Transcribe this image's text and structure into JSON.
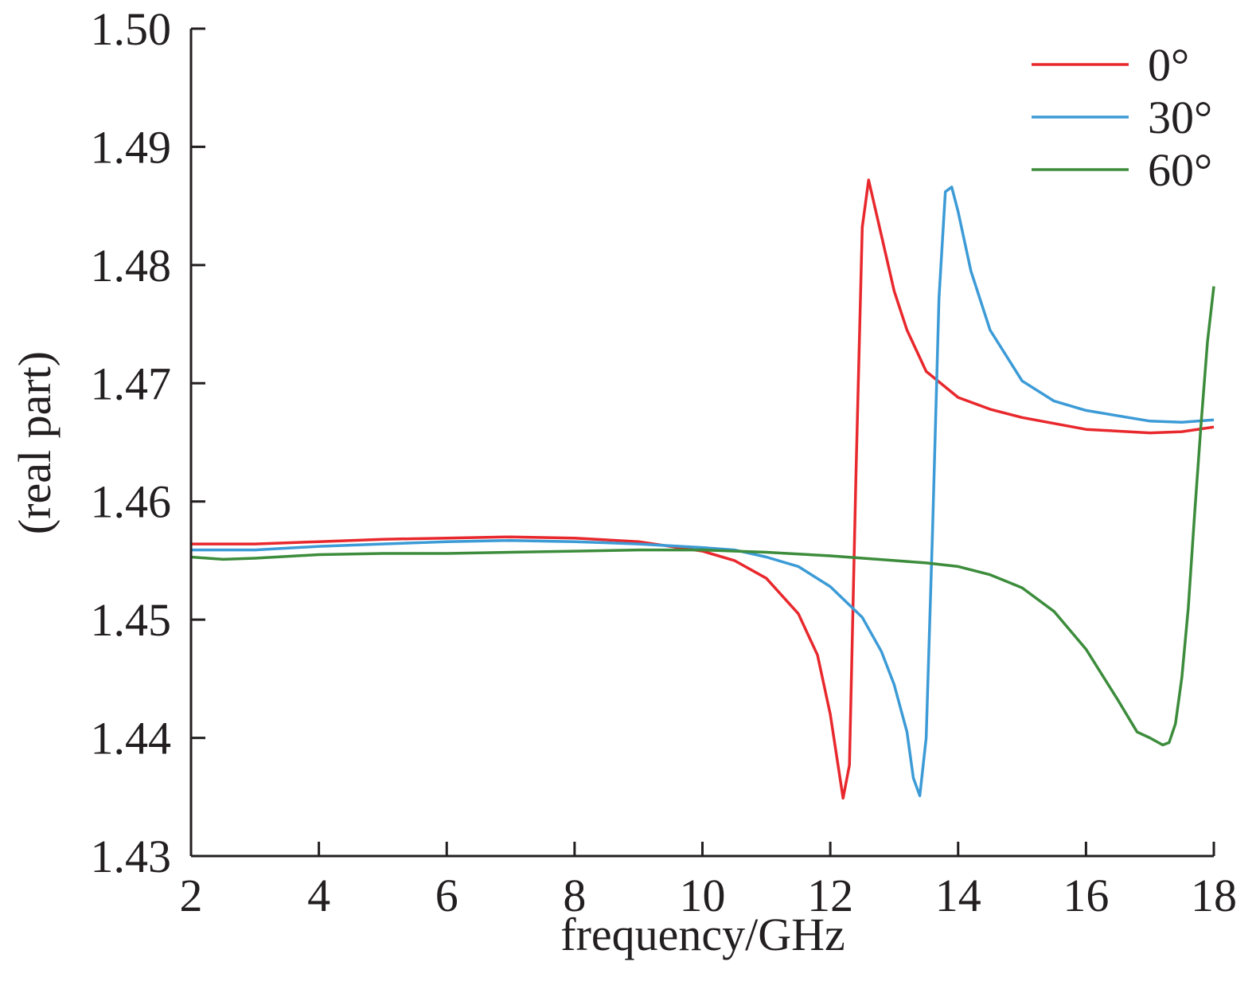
{
  "chart_data": {
    "type": "line",
    "xlabel": "frequency/GHz",
    "ylabel": "(real part)",
    "xlim": [
      2,
      18
    ],
    "ylim": [
      1.43,
      1.5
    ],
    "x_ticks": [
      2,
      4,
      6,
      8,
      10,
      12,
      14,
      16,
      18
    ],
    "x_tick_labels": [
      "2",
      "4",
      "6",
      "8",
      "10",
      "12",
      "14",
      "16",
      "18"
    ],
    "y_ticks": [
      1.43,
      1.44,
      1.45,
      1.46,
      1.47,
      1.48,
      1.49,
      1.5
    ],
    "y_tick_labels": [
      "1.43",
      "1.44",
      "1.45",
      "1.46",
      "1.47",
      "1.48",
      "1.49",
      "1.50"
    ],
    "grid": false,
    "legend_position": "top-right",
    "series": [
      {
        "name": "0°",
        "color": "#e8282d",
        "points": [
          [
            2,
            1.4564
          ],
          [
            3,
            1.4564
          ],
          [
            4,
            1.4566
          ],
          [
            5,
            1.4568
          ],
          [
            6,
            1.4569
          ],
          [
            7,
            1.457
          ],
          [
            8,
            1.4569
          ],
          [
            9,
            1.4566
          ],
          [
            10,
            1.4558
          ],
          [
            10.5,
            1.455
          ],
          [
            11,
            1.4535
          ],
          [
            11.5,
            1.4505
          ],
          [
            11.8,
            1.447
          ],
          [
            12,
            1.442
          ],
          [
            12.2,
            1.4349
          ],
          [
            12.3,
            1.4377
          ],
          [
            12.4,
            1.462
          ],
          [
            12.5,
            1.4832
          ],
          [
            12.6,
            1.4872
          ],
          [
            12.8,
            1.4825
          ],
          [
            13,
            1.4778
          ],
          [
            13.2,
            1.4745
          ],
          [
            13.5,
            1.471
          ],
          [
            14,
            1.4688
          ],
          [
            14.5,
            1.4678
          ],
          [
            15,
            1.4671
          ],
          [
            16,
            1.4661
          ],
          [
            17,
            1.4658
          ],
          [
            17.5,
            1.4659
          ],
          [
            18,
            1.4663
          ]
        ]
      },
      {
        "name": "30°",
        "color": "#3c9bd6",
        "points": [
          [
            2,
            1.4559
          ],
          [
            3,
            1.4559
          ],
          [
            4,
            1.4562
          ],
          [
            5,
            1.4564
          ],
          [
            6,
            1.4566
          ],
          [
            7,
            1.4567
          ],
          [
            8,
            1.4566
          ],
          [
            9,
            1.4564
          ],
          [
            10,
            1.4561
          ],
          [
            10.5,
            1.4559
          ],
          [
            11,
            1.4553
          ],
          [
            11.5,
            1.4545
          ],
          [
            12,
            1.4528
          ],
          [
            12.5,
            1.4502
          ],
          [
            12.8,
            1.4473
          ],
          [
            13,
            1.4445
          ],
          [
            13.2,
            1.4405
          ],
          [
            13.3,
            1.4366
          ],
          [
            13.4,
            1.4351
          ],
          [
            13.5,
            1.44
          ],
          [
            13.6,
            1.4575
          ],
          [
            13.7,
            1.4772
          ],
          [
            13.8,
            1.4862
          ],
          [
            13.9,
            1.4866
          ],
          [
            14,
            1.4845
          ],
          [
            14.2,
            1.4795
          ],
          [
            14.5,
            1.4745
          ],
          [
            15,
            1.4702
          ],
          [
            15.5,
            1.4685
          ],
          [
            16,
            1.4677
          ],
          [
            17,
            1.4668
          ],
          [
            17.5,
            1.4667
          ],
          [
            18,
            1.4669
          ]
        ]
      },
      {
        "name": "60°",
        "color": "#3c8c3c",
        "points": [
          [
            2,
            1.4553
          ],
          [
            2.5,
            1.4551
          ],
          [
            3,
            1.4552
          ],
          [
            4,
            1.4555
          ],
          [
            5,
            1.4556
          ],
          [
            6,
            1.4556
          ],
          [
            7,
            1.4557
          ],
          [
            8,
            1.4558
          ],
          [
            9,
            1.4559
          ],
          [
            10,
            1.4559
          ],
          [
            11,
            1.4557
          ],
          [
            12,
            1.4554
          ],
          [
            13,
            1.455
          ],
          [
            13.5,
            1.4548
          ],
          [
            14,
            1.4545
          ],
          [
            14.5,
            1.4538
          ],
          [
            15,
            1.4527
          ],
          [
            15.5,
            1.4507
          ],
          [
            16,
            1.4475
          ],
          [
            16.5,
            1.4432
          ],
          [
            16.8,
            1.4405
          ],
          [
            17,
            1.44
          ],
          [
            17.2,
            1.4394
          ],
          [
            17.3,
            1.4396
          ],
          [
            17.4,
            1.4412
          ],
          [
            17.5,
            1.4451
          ],
          [
            17.6,
            1.451
          ],
          [
            17.7,
            1.459
          ],
          [
            17.8,
            1.4665
          ],
          [
            17.9,
            1.4735
          ],
          [
            18,
            1.4782
          ]
        ]
      }
    ]
  }
}
